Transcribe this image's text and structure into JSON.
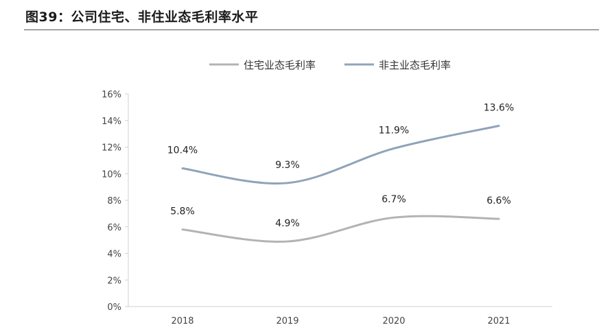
{
  "figure": {
    "title": "图39：公司住宅、非住业态毛利率水平"
  },
  "chart_data": {
    "type": "line",
    "x": [
      "2018",
      "2019",
      "2020",
      "2021"
    ],
    "ylim": [
      0,
      16
    ],
    "yticks": [
      "0%",
      "2%",
      "4%",
      "6%",
      "8%",
      "10%",
      "12%",
      "14%",
      "16%"
    ],
    "ytick_values": [
      0,
      2,
      4,
      6,
      8,
      10,
      12,
      14,
      16
    ],
    "grid": false,
    "legend_position": "top",
    "series": [
      {
        "name": "住宅业态毛利率",
        "values": [
          5.8,
          4.9,
          6.7,
          6.6
        ],
        "labels": [
          "5.8%",
          "4.9%",
          "6.7%",
          "6.6%"
        ],
        "color": "#b3b3b3"
      },
      {
        "name": "非主业态毛利率",
        "values": [
          10.4,
          9.3,
          11.9,
          13.6
        ],
        "labels": [
          "10.4%",
          "9.3%",
          "11.9%",
          "13.6%"
        ],
        "color": "#8fa3b8"
      }
    ]
  }
}
